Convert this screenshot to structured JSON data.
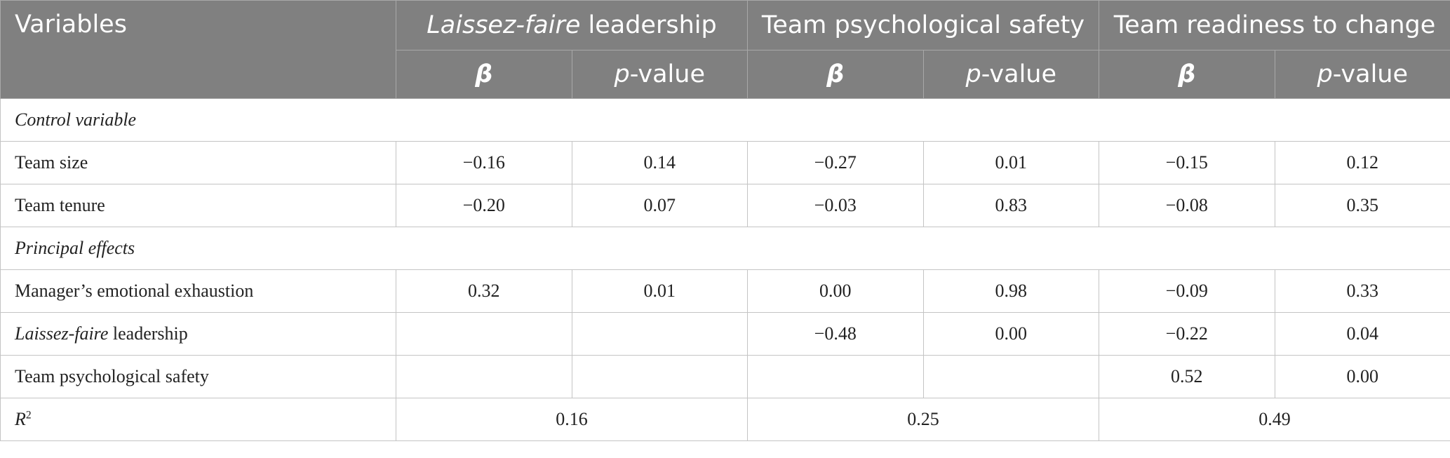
{
  "table": {
    "header": {
      "variables": "Variables",
      "groups": [
        {
          "italic": "Laissez-faire",
          "text": " leadership"
        },
        {
          "text": "Team psychological safety"
        },
        {
          "text": "Team readiness to change"
        }
      ],
      "subheaders": [
        {
          "text": "β"
        },
        {
          "italic": "p",
          "text": "-value"
        },
        {
          "text": "β"
        },
        {
          "italic": "p",
          "text": "-value"
        },
        {
          "text": "β"
        },
        {
          "italic": "p",
          "text": "-value"
        }
      ]
    },
    "rows": [
      {
        "label": {
          "italic": "Control variable"
        }
      },
      {
        "label": {
          "text": "Team size"
        },
        "cells": [
          "−0.16",
          "0.14",
          "−0.27",
          "0.01",
          "−0.15",
          "0.12"
        ]
      },
      {
        "label": {
          "text": "Team tenure"
        },
        "cells": [
          "−0.20",
          "0.07",
          "−0.03",
          "0.83",
          "−0.08",
          "0.35"
        ]
      },
      {
        "label": {
          "italic": "Principal effects"
        }
      },
      {
        "label": {
          "text": "Manager’s emotional exhaustion"
        },
        "cells": [
          "0.32",
          "0.01",
          "0.00",
          "0.98",
          "−0.09",
          "0.33"
        ]
      },
      {
        "label": {
          "italic": "Laissez-faire",
          "text": " leadership"
        },
        "cells": [
          null,
          null,
          "−0.48",
          "0.00",
          "−0.22",
          "0.04"
        ]
      },
      {
        "label": {
          "text": "Team psychological safety"
        },
        "cells": [
          null,
          null,
          null,
          null,
          "0.52",
          "0.00"
        ]
      },
      {
        "label": {
          "italic": "R",
          "sup": "2"
        },
        "merged": [
          "0.16",
          "0.25",
          "0.49"
        ]
      }
    ]
  }
}
